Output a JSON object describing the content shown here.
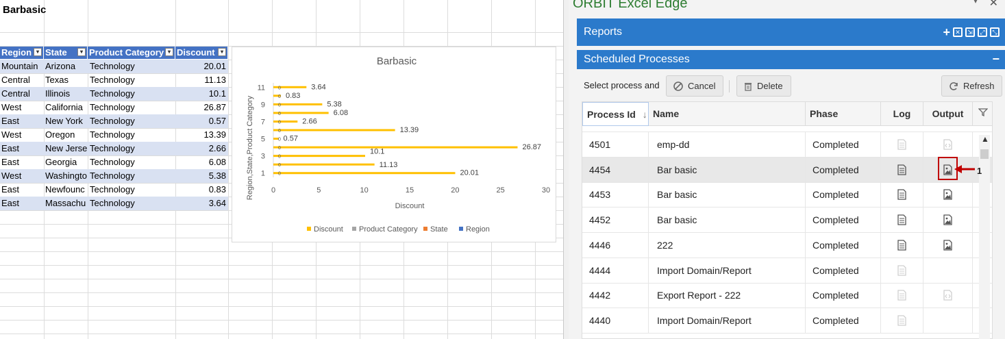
{
  "sheet": {
    "title": "Barbasic",
    "headers": [
      "Region",
      "State",
      "Product Category",
      "Discount"
    ],
    "rows": [
      [
        "Mountain",
        "Arizona",
        "Technology",
        "20.01"
      ],
      [
        "Central",
        "Texas",
        "Technology",
        "11.13"
      ],
      [
        "Central",
        "Illinois",
        "Technology",
        "10.1"
      ],
      [
        "West",
        "California",
        "Technology",
        "26.87"
      ],
      [
        "East",
        "New York",
        "Technology",
        "0.57"
      ],
      [
        "West",
        "Oregon",
        "Technology",
        "13.39"
      ],
      [
        "East",
        "New Jerse",
        "Technology",
        "2.66"
      ],
      [
        "East",
        "Georgia",
        "Technology",
        "6.08"
      ],
      [
        "West",
        "Washingto",
        "Technology",
        "5.38"
      ],
      [
        "East",
        "Newfounc",
        "Technology",
        "0.83"
      ],
      [
        "East",
        "Massachu",
        "Technology",
        "3.64"
      ]
    ]
  },
  "chart_data": {
    "type": "bar",
    "orientation": "horizontal",
    "title": "Barbasic",
    "xlabel": "Discount",
    "ylabel": "Region,State,Product Category",
    "categories": [
      "1",
      "2",
      "3",
      "4",
      "5",
      "6",
      "7",
      "8",
      "9",
      "10",
      "11"
    ],
    "y_tick_labels": [
      "1",
      "3",
      "5",
      "7",
      "9",
      "11"
    ],
    "series": [
      {
        "name": "Discount",
        "color": "#ffc000",
        "values": [
          20.01,
          11.13,
          10.1,
          26.87,
          0.57,
          13.39,
          2.66,
          6.08,
          5.38,
          0.83,
          3.64
        ]
      },
      {
        "name": "Product Category",
        "color": "#a5a5a5",
        "values": [
          0,
          0,
          0,
          0,
          0,
          0,
          0,
          0,
          0,
          0,
          0
        ]
      },
      {
        "name": "State",
        "color": "#ed7d31",
        "values": [
          0,
          0,
          0,
          0,
          0,
          0,
          0,
          0,
          0,
          0,
          0
        ]
      },
      {
        "name": "Region",
        "color": "#4472c4",
        "values": [
          0,
          0,
          0,
          0,
          0,
          0,
          0,
          0,
          0,
          0,
          0
        ]
      }
    ],
    "data_labels": [
      "20.01",
      "11.13",
      "10.1",
      "26.87",
      "0.57",
      "13.39",
      "2.66",
      "6.08",
      "5.38",
      "0.83",
      "3.64"
    ],
    "xticks": [
      "0",
      "5",
      "10",
      "15",
      "20",
      "25",
      "30"
    ],
    "xlim": [
      0,
      30
    ],
    "legend": "bottom",
    "grid": false
  },
  "pane": {
    "title": "ORBIT Excel Edge",
    "menu_glyph": "▾",
    "close_glyph": "✕",
    "reports_label": "Reports",
    "plus_glyph": "+",
    "scheduled_label": "Scheduled Processes",
    "minus_glyph": "−",
    "select_label": "Select process and",
    "cancel_label": "Cancel",
    "delete_label": "Delete",
    "refresh_label": "Refresh",
    "grid_headers": {
      "process_id": "Process Id",
      "name": "Name",
      "phase": "Phase",
      "log": "Log",
      "output": "Output"
    },
    "sort_glyph": "↓",
    "rows": [
      {
        "id": "4501",
        "name": "emp-dd",
        "phase": "Completed",
        "log": "disabled",
        "output": "code-disabled"
      },
      {
        "id": "4454",
        "name": "Bar basic",
        "phase": "Completed",
        "log": "enabled",
        "output": "image"
      },
      {
        "id": "4453",
        "name": "Bar basic",
        "phase": "Completed",
        "log": "enabled",
        "output": "image"
      },
      {
        "id": "4452",
        "name": "Bar basic",
        "phase": "Completed",
        "log": "enabled",
        "output": "image"
      },
      {
        "id": "4446",
        "name": "222",
        "phase": "Completed",
        "log": "enabled",
        "output": "image"
      },
      {
        "id": "4444",
        "name": "Import Domain/Report",
        "phase": "Completed",
        "log": "disabled",
        "output": "none"
      },
      {
        "id": "4442",
        "name": "Export Report - 222",
        "phase": "Completed",
        "log": "disabled",
        "output": "code-disabled"
      },
      {
        "id": "4440",
        "name": "Import Domain/Report",
        "phase": "Completed",
        "log": "disabled",
        "output": "none"
      }
    ],
    "annotation_label": "1",
    "accent_color": "#2b7acb",
    "title_color": "#2e7d32",
    "annotation_color": "#c00000"
  }
}
